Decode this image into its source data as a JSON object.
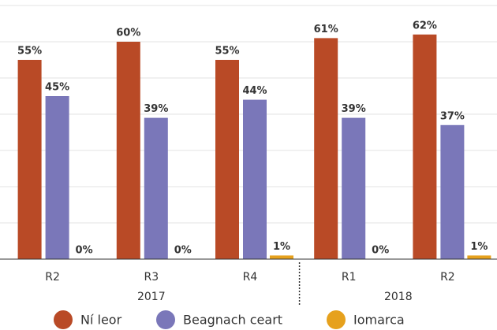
{
  "chart_data": {
    "type": "bar",
    "categories": [
      "R2",
      "R3",
      "R4",
      "R1",
      "R2"
    ],
    "groups": [
      {
        "label": "2017",
        "size": 3
      },
      {
        "label": "2018",
        "size": 2
      }
    ],
    "series": [
      {
        "name": "Ní leor",
        "color": "#b94a26",
        "values": [
          55,
          60,
          55,
          61,
          62
        ],
        "value_labels": [
          "55%",
          "60%",
          "55%",
          "61%",
          "62%"
        ]
      },
      {
        "name": "Beagnach ceart",
        "color": "#7a77b9",
        "values": [
          45,
          39,
          44,
          39,
          37
        ],
        "value_labels": [
          "45%",
          "39%",
          "44%",
          "39%",
          "37%"
        ]
      },
      {
        "name": "Iomarca",
        "color": "#e6a11d",
        "values": [
          0,
          0,
          1,
          0,
          1
        ],
        "value_labels": [
          "0%",
          "0%",
          "1%",
          "0%",
          "1%"
        ]
      }
    ],
    "ylim": [
      0,
      70
    ],
    "yticks": [
      0,
      10,
      20,
      30,
      40,
      50,
      60,
      70
    ],
    "grid": true,
    "legend": "bottom"
  }
}
